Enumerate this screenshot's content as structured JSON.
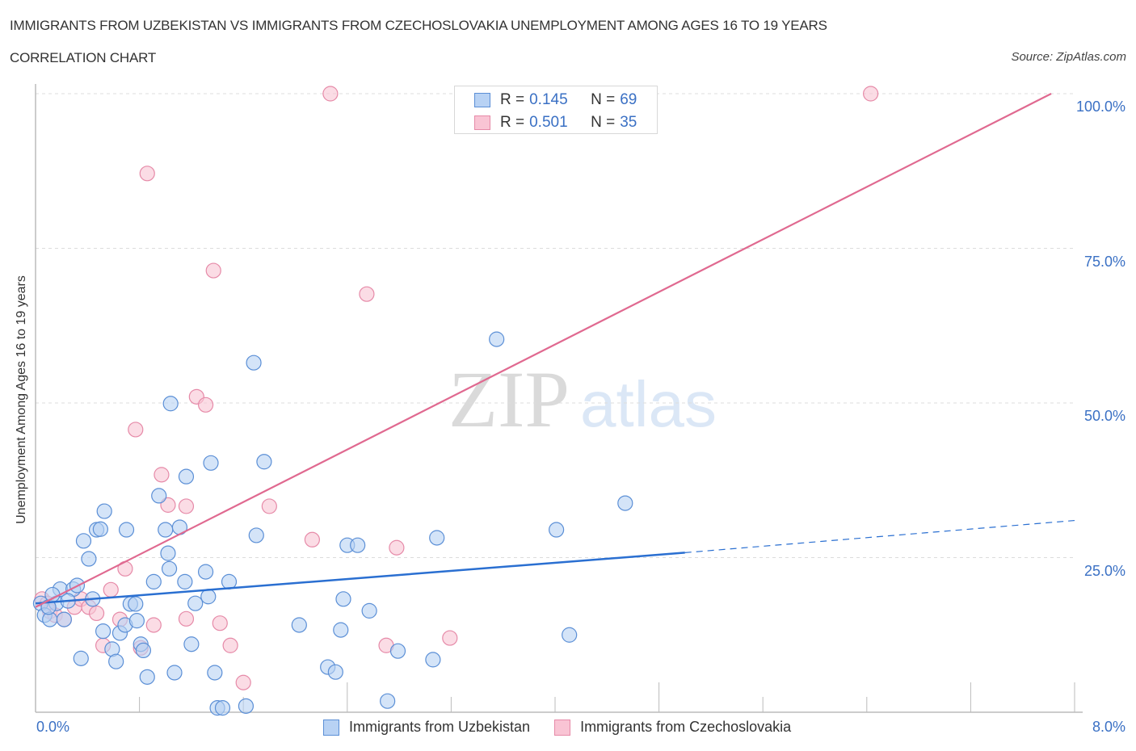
{
  "header": {
    "title": "IMMIGRANTS FROM UZBEKISTAN VS IMMIGRANTS FROM CZECHOSLOVAKIA UNEMPLOYMENT AMONG AGES 16 TO 19 YEARS",
    "subtitle": "CORRELATION CHART",
    "source": "Source: ZipAtlas.com"
  },
  "watermark": {
    "zip": "ZIP",
    "atlas": "atlas"
  },
  "legend": {
    "rows": [
      {
        "r_label": "R =",
        "r_value": "0.145",
        "n_label": "N =",
        "n_value": "69"
      },
      {
        "r_label": "R =",
        "r_value": "0.501",
        "n_label": "N =",
        "n_value": "35"
      }
    ]
  },
  "colors": {
    "blue_fill": "#b8d2f4",
    "blue_stroke": "#5b8fd6",
    "blue_line": "#2a6fd1",
    "pink_fill": "#f9c4d4",
    "pink_stroke": "#e68aa8",
    "pink_line": "#e06990",
    "accent_text": "#3a70c4"
  },
  "chart_data": {
    "type": "scatter",
    "title": "IMMIGRANTS FROM UZBEKISTAN VS IMMIGRANTS FROM CZECHOSLOVAKIA UNEMPLOYMENT AMONG AGES 16 TO 19 YEARS",
    "subtitle": "CORRELATION CHART",
    "xlabel": "",
    "ylabel": "Unemployment Among Ages 16 to 19 years",
    "xlim": [
      0,
      8
    ],
    "ylim": [
      0,
      100
    ],
    "x_tick_labels": [
      "0.0%",
      "8.0%"
    ],
    "y_tick_labels": [
      "25.0%",
      "50.0%",
      "75.0%",
      "100.0%"
    ],
    "y_ticks": [
      25,
      50,
      75,
      100
    ],
    "x_minor_ticks": [
      0.8,
      1.6,
      2.4,
      3.2,
      4.0,
      4.8,
      5.6,
      6.4,
      7.2,
      8.0
    ],
    "grid": true,
    "legend_position": "top-center",
    "series": [
      {
        "name": "Immigrants from Uzbekistan",
        "color": "blue",
        "R": 0.145,
        "N": 69,
        "trend": {
          "x0": 0,
          "y0": 17.6,
          "x1": 5.0,
          "y1": 25.8,
          "dashed_to_x": 8.0,
          "dashed_to_y": 31.0
        },
        "points": [
          [
            0.04,
            17.6
          ],
          [
            0.07,
            15.7
          ],
          [
            0.11,
            15.0
          ],
          [
            0.16,
            17.6
          ],
          [
            0.19,
            19.9
          ],
          [
            0.22,
            15.0
          ],
          [
            0.29,
            19.9
          ],
          [
            0.32,
            20.5
          ],
          [
            0.35,
            8.7
          ],
          [
            0.37,
            27.7
          ],
          [
            0.41,
            24.8
          ],
          [
            0.44,
            18.3
          ],
          [
            0.47,
            29.5
          ],
          [
            0.5,
            29.6
          ],
          [
            0.52,
            13.1
          ],
          [
            0.53,
            32.5
          ],
          [
            0.59,
            10.2
          ],
          [
            0.62,
            8.2
          ],
          [
            0.65,
            12.8
          ],
          [
            0.69,
            14.1
          ],
          [
            0.7,
            29.5
          ],
          [
            0.73,
            17.5
          ],
          [
            0.77,
            17.5
          ],
          [
            0.78,
            14.8
          ],
          [
            0.81,
            11.0
          ],
          [
            0.83,
            10.0
          ],
          [
            0.86,
            5.7
          ],
          [
            0.91,
            21.1
          ],
          [
            0.95,
            35.0
          ],
          [
            1.0,
            29.5
          ],
          [
            1.02,
            25.7
          ],
          [
            1.03,
            23.2
          ],
          [
            1.04,
            49.9
          ],
          [
            1.07,
            6.4
          ],
          [
            1.11,
            29.9
          ],
          [
            1.15,
            21.1
          ],
          [
            1.16,
            38.1
          ],
          [
            1.2,
            11.0
          ],
          [
            1.23,
            17.6
          ],
          [
            1.31,
            22.7
          ],
          [
            1.33,
            18.7
          ],
          [
            1.35,
            40.3
          ],
          [
            1.38,
            6.4
          ],
          [
            1.4,
            0.7
          ],
          [
            1.44,
            0.7
          ],
          [
            1.49,
            21.1
          ],
          [
            1.62,
            1.0
          ],
          [
            1.68,
            56.5
          ],
          [
            1.7,
            28.6
          ],
          [
            1.76,
            40.5
          ],
          [
            2.03,
            14.1
          ],
          [
            2.25,
            7.3
          ],
          [
            2.31,
            6.5
          ],
          [
            2.35,
            13.3
          ],
          [
            2.37,
            18.3
          ],
          [
            2.4,
            27.0
          ],
          [
            2.48,
            27.0
          ],
          [
            2.57,
            16.4
          ],
          [
            2.71,
            1.8
          ],
          [
            2.79,
            9.9
          ],
          [
            3.06,
            8.5
          ],
          [
            3.09,
            28.2
          ],
          [
            3.55,
            60.3
          ],
          [
            4.01,
            29.5
          ],
          [
            4.11,
            12.5
          ],
          [
            4.54,
            33.8
          ],
          [
            0.1,
            17.0
          ],
          [
            0.25,
            18.0
          ],
          [
            0.13,
            19.0
          ]
        ]
      },
      {
        "name": "Immigrants from Czechoslovakia",
        "color": "pink",
        "R": 0.501,
        "N": 35,
        "trend": {
          "x0": 0,
          "y0": 17.0,
          "x1": 7.82,
          "y1": 100.0
        },
        "points": [
          [
            0.05,
            18.3
          ],
          [
            0.09,
            17.6
          ],
          [
            0.11,
            16.3
          ],
          [
            0.15,
            15.7
          ],
          [
            0.22,
            15.0
          ],
          [
            0.3,
            17.0
          ],
          [
            0.35,
            18.3
          ],
          [
            0.41,
            17.0
          ],
          [
            0.47,
            16.0
          ],
          [
            0.52,
            10.8
          ],
          [
            0.58,
            19.8
          ],
          [
            0.65,
            15.0
          ],
          [
            0.69,
            23.2
          ],
          [
            0.77,
            45.7
          ],
          [
            0.81,
            10.4
          ],
          [
            0.86,
            87.1
          ],
          [
            0.91,
            14.1
          ],
          [
            0.97,
            38.4
          ],
          [
            1.02,
            33.5
          ],
          [
            1.16,
            33.3
          ],
          [
            1.16,
            15.1
          ],
          [
            1.24,
            51.0
          ],
          [
            1.31,
            49.7
          ],
          [
            1.37,
            71.4
          ],
          [
            1.42,
            14.4
          ],
          [
            1.5,
            10.8
          ],
          [
            1.6,
            4.8
          ],
          [
            1.8,
            33.3
          ],
          [
            2.13,
            27.9
          ],
          [
            2.27,
            100.0
          ],
          [
            2.55,
            67.6
          ],
          [
            2.7,
            10.8
          ],
          [
            2.78,
            26.6
          ],
          [
            3.19,
            12.0
          ],
          [
            6.43,
            100.0
          ]
        ]
      }
    ]
  },
  "bottom_legend": {
    "items": [
      {
        "label": "Immigrants from Uzbekistan"
      },
      {
        "label": "Immigrants from Czechoslovakia"
      }
    ]
  }
}
